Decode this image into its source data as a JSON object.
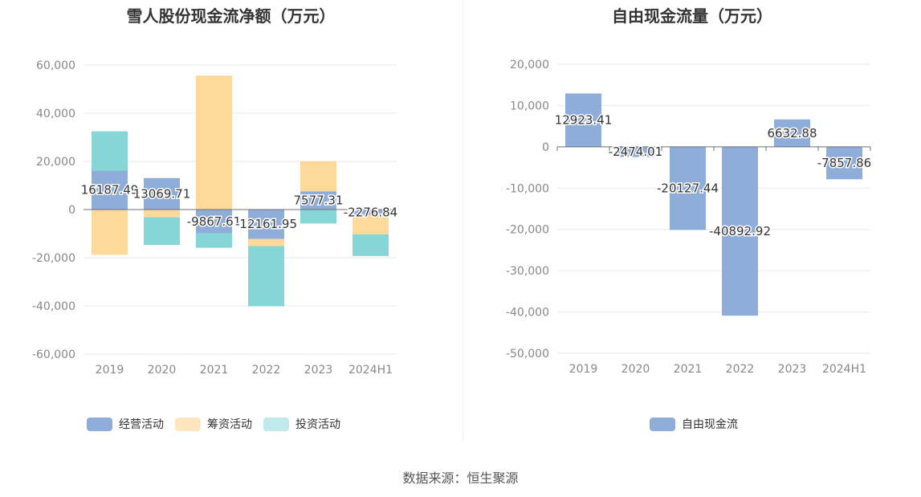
{
  "chart_data": [
    {
      "type": "bar",
      "stacked": true,
      "title": "雪人股份现金流净额（万元）",
      "categories": [
        "2019",
        "2020",
        "2021",
        "2022",
        "2023",
        "2024H1"
      ],
      "ylim": [
        -60000,
        60000
      ],
      "yticks": [
        60000,
        40000,
        20000,
        0,
        -20000,
        -40000,
        -60000
      ],
      "ytick_labels": [
        "60,000",
        "40,000",
        "20,000",
        "0",
        "-20,000",
        "-40,000",
        "-60,000"
      ],
      "series": [
        {
          "name": "经营活动",
          "color": "#8fadd9",
          "values": [
            16187.49,
            13069.71,
            -9867.61,
            -12161.95,
            7577.31,
            -2276.84
          ],
          "data_labels": [
            "16187.49",
            "13069.71",
            "-9867.61",
            "-12161.95",
            "7577.31",
            "-2276.84"
          ]
        },
        {
          "name": "筹资活动",
          "color": "#ffd999",
          "values": [
            -18800,
            -3200,
            55600,
            -3000,
            12500,
            -8000
          ]
        },
        {
          "name": "投资活动",
          "color": "#86d6d8",
          "values": [
            16300,
            -11500,
            -6000,
            -25000,
            -5800,
            -9000
          ]
        }
      ],
      "legend": [
        {
          "name": "经营活动",
          "color": "#8fadd9"
        },
        {
          "name": "筹资活动",
          "color": "#ffe6bd"
        },
        {
          "name": "投资活动",
          "color": "#c0e9eb"
        }
      ]
    },
    {
      "type": "bar",
      "title": "自由现金流量（万元）",
      "categories": [
        "2019",
        "2020",
        "2021",
        "2022",
        "2023",
        "2024H1"
      ],
      "ylim": [
        -50000,
        20000
      ],
      "yticks": [
        20000,
        10000,
        0,
        -10000,
        -20000,
        -30000,
        -40000,
        -50000
      ],
      "ytick_labels": [
        "20,000",
        "10,000",
        "0",
        "-10,000",
        "-20,000",
        "-30,000",
        "-40,000",
        "-50,000"
      ],
      "series": [
        {
          "name": "自由现金流",
          "color": "#8fadd9",
          "values": [
            12923.41,
            -2474.01,
            -20127.44,
            -40892.92,
            6632.88,
            -7857.86
          ],
          "data_labels": [
            "12923.41",
            "-2474.01",
            "-20127.44",
            "-40892.92",
            "6632.88",
            "-7857.86"
          ]
        }
      ],
      "legend": [
        {
          "name": "自由现金流",
          "color": "#8fadd9"
        }
      ]
    }
  ],
  "source": "数据来源：恒生聚源"
}
